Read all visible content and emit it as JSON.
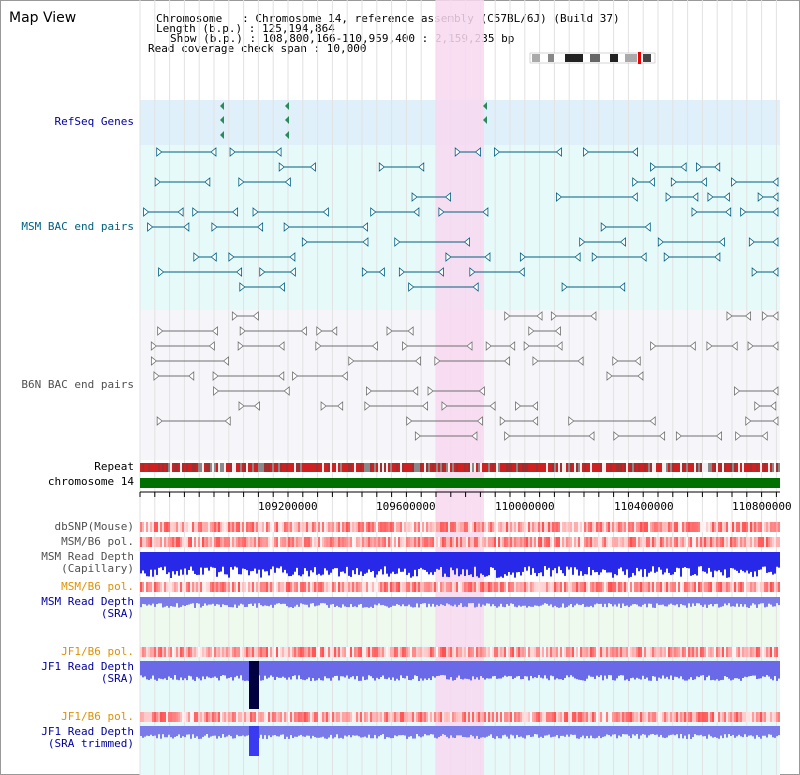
{
  "app": {
    "title": "Map View"
  },
  "header": {
    "chromosome_line": "Chromosome   : Chromosome 14, reference assembly (C57BL/6J) (Build 37)",
    "length_line": "Length (b.p.) : 125,194,864",
    "show_line": "Show (b.p.) : 108,800,166-110,959,400 : 2,159,235 bp",
    "coverage_line": "Read coverage check span : 10,000"
  },
  "tracks": {
    "refseq": "RefSeq Genes",
    "msm_bac": "MSM BAC end pairs",
    "b6n_bac": "B6N BAC end pairs",
    "repeat": "Repeat",
    "chromosome": "chromosome 14",
    "dbsnp": "dbSNP(Mouse)",
    "msm_pol1": "MSM/B6 pol.",
    "msm_depth_cap": "MSM Read Depth\n(Capillary)",
    "msm_pol2": "MSM/B6 pol.",
    "msm_depth_sra": "MSM Read Depth\n(SRA)",
    "jf1_pol1": "JF1/B6 pol.",
    "jf1_depth_sra": "JF1 Read Depth\n(SRA)",
    "jf1_pol2": "JF1/B6 pol.",
    "jf1_depth_trim": "JF1 Read Depth\n(SRA trimmed)"
  },
  "axis": {
    "ticks": [
      "109200000",
      "109600000",
      "110000000",
      "110400000",
      "110800000"
    ]
  },
  "colors": {
    "refseq_bg": "#dff0fa",
    "msm_bg": "#e6fafa",
    "b6n_bg": "#f6f6fa",
    "highlight": "#f8d8f0",
    "chrom_bar": "#007000",
    "label_blue": "#0000a0",
    "label_teal": "#006080",
    "label_gray": "#505050",
    "label_orange": "#e09000"
  }
}
